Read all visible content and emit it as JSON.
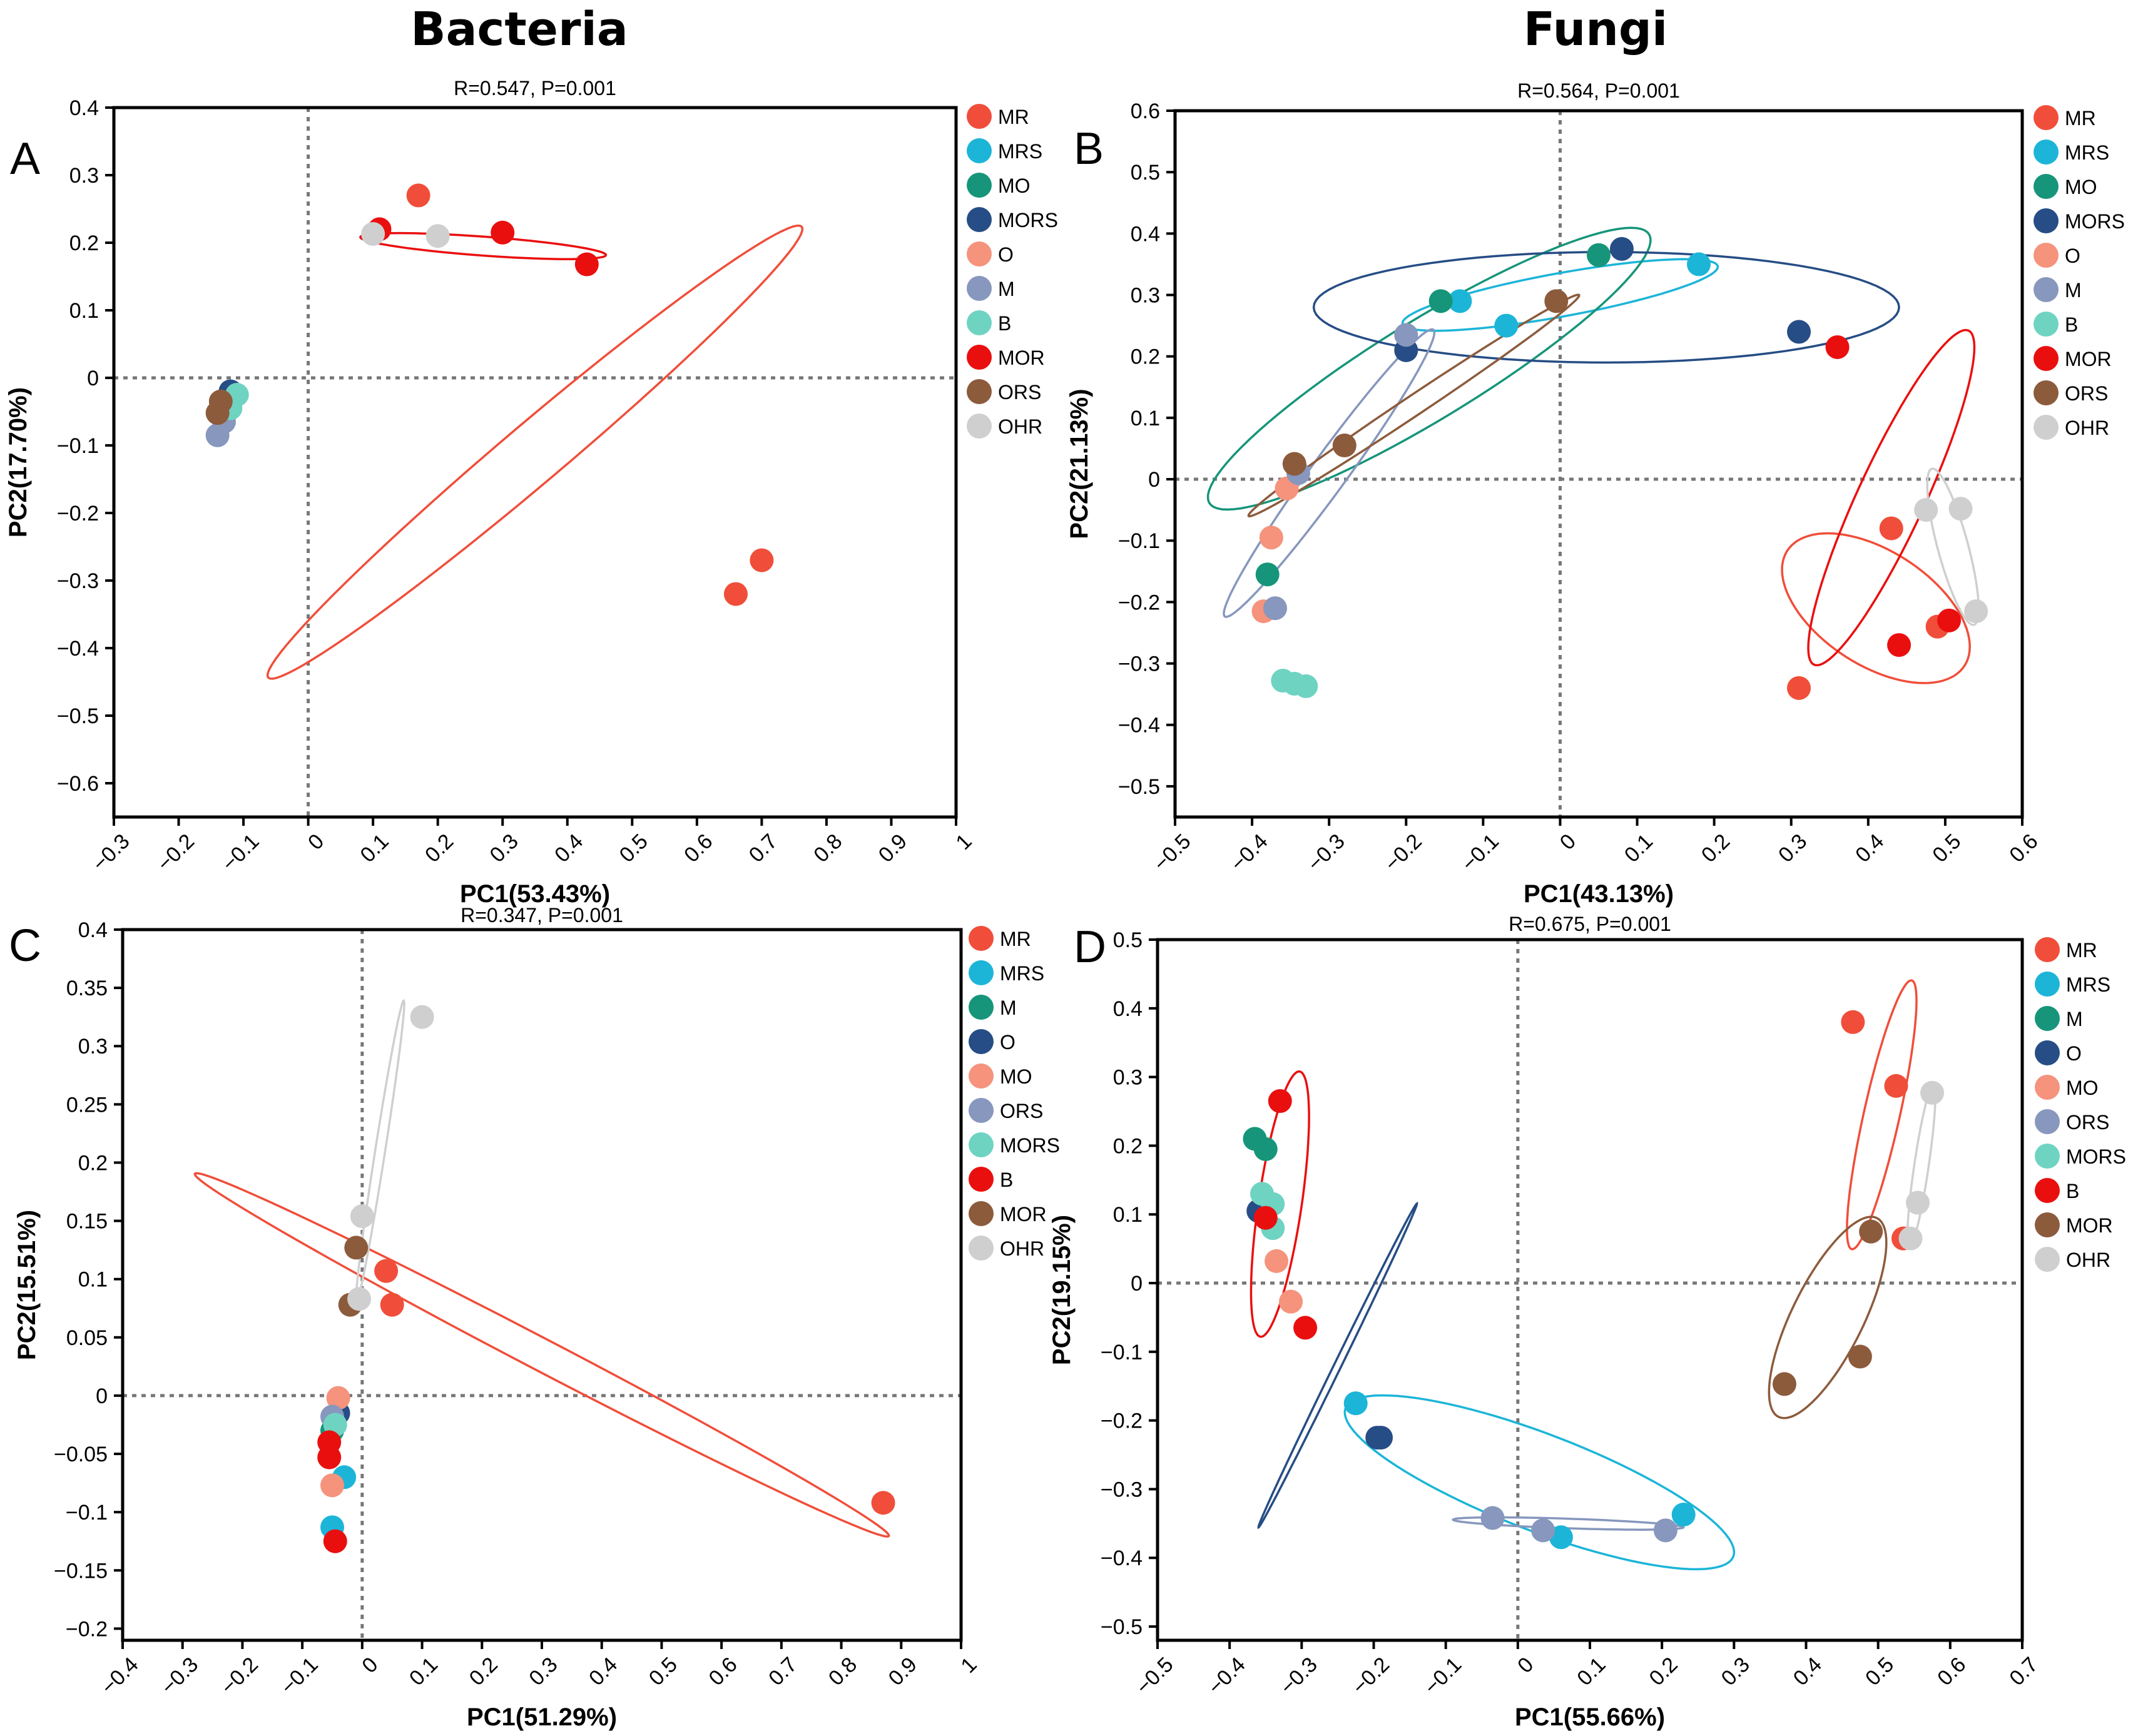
{
  "figure": {
    "column_titles": [
      "Bacteria",
      "Fungi"
    ]
  },
  "chart_data": [
    {
      "type": "scatter",
      "panel": "A",
      "title": "R=0.547, P=0.001",
      "xlabel": "PC1(53.43%)",
      "ylabel": "PC2(17.70%)",
      "xlim": [
        -0.3,
        1.0
      ],
      "ylim": [
        -0.65,
        0.4
      ],
      "xticks": [
        -0.3,
        -0.2,
        -0.1,
        0,
        0.1,
        0.2,
        0.3,
        0.4,
        0.5,
        0.6,
        0.7,
        0.8,
        0.9,
        1
      ],
      "yticks": [
        -0.6,
        -0.5,
        -0.4,
        -0.3,
        -0.2,
        -0.1,
        0,
        0.1,
        0.2,
        0.3,
        0.4
      ],
      "xtick_labels": [
        "−0.3",
        "−0.2",
        "−0.1",
        "0",
        "0.1",
        "0.2",
        "0.3",
        "0.4",
        "0.5",
        "0.6",
        "0.7",
        "0.8",
        "0.9",
        "1"
      ],
      "ytick_labels": [
        "−0.6",
        "−0.5",
        "−0.4",
        "−0.3",
        "−0.2",
        "−0.1",
        "0",
        "0.1",
        "0.2",
        "0.3",
        "0.4"
      ],
      "reference_lines": {
        "x": 0,
        "y": 0
      },
      "series": [
        {
          "name": "MR",
          "color": "#f04e3a",
          "points": [
            [
              0.17,
              0.27
            ],
            [
              0.66,
              -0.32
            ],
            [
              0.7,
              -0.27
            ]
          ],
          "ellipse": {
            "cx": 0.35,
            "cy": -0.11,
            "rx": 0.53,
            "ry": 0.045,
            "angle_deg": 39
          }
        },
        {
          "name": "MRS",
          "color": "#1cb5d8",
          "points": []
        },
        {
          "name": "MO",
          "color": "#16957a",
          "points": []
        },
        {
          "name": "MORS",
          "color": "#264d85",
          "points": [
            [
              -0.12,
              -0.02
            ]
          ]
        },
        {
          "name": "O",
          "color": "#f5937c",
          "points": []
        },
        {
          "name": "M",
          "color": "#8797bd",
          "points": [
            [
              -0.14,
              -0.085
            ],
            [
              -0.13,
              -0.065
            ]
          ]
        },
        {
          "name": "B",
          "color": "#6fd3c2",
          "points": [
            [
              -0.11,
              -0.025
            ],
            [
              -0.12,
              -0.045
            ]
          ]
        },
        {
          "name": "MOR",
          "color": "#ea0f0f",
          "points": [
            [
              0.11,
              0.22
            ],
            [
              0.3,
              0.215
            ],
            [
              0.43,
              0.168
            ]
          ],
          "ellipse": {
            "cx": 0.27,
            "cy": 0.195,
            "rx": 0.19,
            "ry": 0.014,
            "angle_deg": -4
          }
        },
        {
          "name": "ORS",
          "color": "#8c5b3c",
          "points": [
            [
              -0.135,
              -0.035
            ],
            [
              -0.14,
              -0.052
            ]
          ]
        },
        {
          "name": "OHR",
          "color": "#cfcfcf",
          "points": [
            [
              0.1,
              0.213
            ],
            [
              0.2,
              0.21
            ]
          ]
        }
      ]
    },
    {
      "type": "scatter",
      "panel": "B",
      "title": "R=0.564, P=0.001",
      "xlabel": "PC1(43.13%)",
      "ylabel": "PC2(21.13%)",
      "xlim": [
        -0.5,
        0.6
      ],
      "ylim": [
        -0.55,
        0.6
      ],
      "xticks": [
        -0.5,
        -0.4,
        -0.3,
        -0.2,
        -0.1,
        0,
        0.1,
        0.2,
        0.3,
        0.4,
        0.5,
        0.6
      ],
      "yticks": [
        -0.5,
        -0.4,
        -0.3,
        -0.2,
        -0.1,
        0,
        0.1,
        0.2,
        0.3,
        0.4,
        0.5,
        0.6
      ],
      "xtick_labels": [
        "−0.5",
        "−0.4",
        "−0.3",
        "−0.2",
        "−0.1",
        "0",
        "0.1",
        "0.2",
        "0.3",
        "0.4",
        "0.5",
        "0.6"
      ],
      "ytick_labels": [
        "−0.5",
        "−0.4",
        "−0.3",
        "−0.2",
        "−0.1",
        "0",
        "0.1",
        "0.2",
        "0.3",
        "0.4",
        "0.5",
        "0.6"
      ],
      "reference_lines": {
        "x": 0,
        "y": 0
      },
      "series": [
        {
          "name": "MR",
          "color": "#f04e3a",
          "points": [
            [
              0.43,
              -0.08
            ],
            [
              0.31,
              -0.34
            ],
            [
              0.49,
              -0.24
            ]
          ],
          "ellipse": {
            "cx": 0.41,
            "cy": -0.21,
            "rx": 0.15,
            "ry": 0.085,
            "angle_deg": -45
          }
        },
        {
          "name": "MRS",
          "color": "#1cb5d8",
          "points": [
            [
              -0.13,
              0.29
            ],
            [
              -0.07,
              0.25
            ],
            [
              0.18,
              0.35
            ]
          ],
          "ellipse": {
            "cx": 0.0,
            "cy": 0.3,
            "rx": 0.21,
            "ry": 0.035,
            "angle_deg": 13
          }
        },
        {
          "name": "MO",
          "color": "#16957a",
          "points": [
            [
              -0.38,
              -0.155
            ],
            [
              -0.155,
              0.29
            ],
            [
              0.05,
              0.365
            ]
          ],
          "ellipse": {
            "cx": -0.17,
            "cy": 0.18,
            "rx": 0.36,
            "ry": 0.075,
            "angle_deg": 38
          }
        },
        {
          "name": "MORS",
          "color": "#264d85",
          "points": [
            [
              -0.2,
              0.21
            ],
            [
              0.08,
              0.375
            ],
            [
              0.31,
              0.24
            ]
          ],
          "ellipse": {
            "cx": 0.06,
            "cy": 0.28,
            "rx": 0.38,
            "ry": 0.09,
            "angle_deg": 0
          }
        },
        {
          "name": "O",
          "color": "#f5937c",
          "points": [
            [
              -0.355,
              -0.015
            ],
            [
              -0.375,
              -0.095
            ],
            [
              -0.385,
              -0.215
            ]
          ]
        },
        {
          "name": "M",
          "color": "#8797bd",
          "points": [
            [
              -0.2,
              0.235
            ],
            [
              -0.34,
              0.01
            ],
            [
              -0.37,
              -0.21
            ]
          ],
          "ellipse": {
            "cx": -0.3,
            "cy": 0.01,
            "rx": 0.27,
            "ry": 0.025,
            "angle_deg": 60
          }
        },
        {
          "name": "B",
          "color": "#6fd3c2",
          "points": [
            [
              -0.36,
              -0.328
            ],
            [
              -0.345,
              -0.333
            ],
            [
              -0.33,
              -0.337
            ]
          ]
        },
        {
          "name": "MOR",
          "color": "#ea0f0f",
          "points": [
            [
              0.36,
              0.215
            ],
            [
              0.44,
              -0.27
            ],
            [
              0.505,
              -0.23
            ]
          ],
          "ellipse": {
            "cx": 0.43,
            "cy": -0.03,
            "rx": 0.29,
            "ry": 0.045,
            "angle_deg": 70
          }
        },
        {
          "name": "ORS",
          "color": "#8c5b3c",
          "points": [
            [
              -0.345,
              0.025
            ],
            [
              -0.28,
              0.055
            ],
            [
              -0.005,
              0.29
            ]
          ],
          "ellipse": {
            "cx": -0.19,
            "cy": 0.12,
            "rx": 0.28,
            "ry": 0.015,
            "angle_deg": 40
          }
        },
        {
          "name": "OHR",
          "color": "#cfcfcf",
          "points": [
            [
              0.475,
              -0.05
            ],
            [
              0.52,
              -0.048
            ],
            [
              0.54,
              -0.215
            ]
          ],
          "ellipse": {
            "cx": 0.51,
            "cy": -0.11,
            "rx": 0.13,
            "ry": 0.02,
            "angle_deg": -78
          }
        }
      ]
    },
    {
      "type": "scatter",
      "panel": "C",
      "title": "R=0.347, P=0.001",
      "xlabel": "PC1(51.29%)",
      "ylabel": "PC2(15.51%)",
      "xlim": [
        -0.4,
        1.0
      ],
      "ylim": [
        -0.21,
        0.4
      ],
      "xticks": [
        -0.4,
        -0.3,
        -0.2,
        -0.1,
        0,
        0.1,
        0.2,
        0.3,
        0.4,
        0.5,
        0.6,
        0.7,
        0.8,
        0.9,
        1
      ],
      "yticks": [
        -0.2,
        -0.15,
        -0.1,
        -0.05,
        0,
        0.05,
        0.1,
        0.15,
        0.2,
        0.25,
        0.3,
        0.35,
        0.4
      ],
      "xtick_labels": [
        "−0.4",
        "−0.3",
        "−0.2",
        "−0.1",
        "0",
        "0.1",
        "0.2",
        "0.3",
        "0.4",
        "0.5",
        "0.6",
        "0.7",
        "0.8",
        "0.9",
        "1"
      ],
      "ytick_labels": [
        "−0.2",
        "−0.15",
        "−0.1",
        "−0.05",
        "0",
        "0.05",
        "0.1",
        "0.15",
        "0.2",
        "0.25",
        "0.3",
        "0.35",
        "0.4"
      ],
      "reference_lines": {
        "x": 0,
        "y": 0
      },
      "series": [
        {
          "name": "MR",
          "color": "#f04e3a",
          "points": [
            [
              0.04,
              0.107
            ],
            [
              0.05,
              0.078
            ],
            [
              0.87,
              -0.092
            ]
          ],
          "ellipse": {
            "cx": 0.3,
            "cy": 0.035,
            "rx": 0.6,
            "ry": 0.015,
            "angle_deg": -15
          }
        },
        {
          "name": "MRS",
          "color": "#1cb5d8",
          "points": [
            [
              -0.03,
              -0.07
            ],
            [
              -0.05,
              -0.113
            ]
          ]
        },
        {
          "name": "M",
          "color": "#16957a",
          "points": [
            [
              -0.05,
              -0.03
            ]
          ]
        },
        {
          "name": "O",
          "color": "#264d85",
          "points": [
            [
              -0.04,
              -0.015
            ]
          ]
        },
        {
          "name": "MO",
          "color": "#f5937c",
          "points": [
            [
              -0.04,
              -0.002
            ],
            [
              -0.05,
              -0.077
            ]
          ]
        },
        {
          "name": "ORS",
          "color": "#8797bd",
          "points": [
            [
              -0.05,
              -0.018
            ]
          ]
        },
        {
          "name": "MORS",
          "color": "#6fd3c2",
          "points": [
            [
              -0.045,
              -0.025
            ]
          ]
        },
        {
          "name": "B",
          "color": "#ea0f0f",
          "points": [
            [
              -0.055,
              -0.04
            ],
            [
              -0.055,
              -0.053
            ],
            [
              -0.045,
              -0.125
            ]
          ]
        },
        {
          "name": "MOR",
          "color": "#8c5b3c",
          "points": [
            [
              -0.01,
              0.127
            ],
            [
              -0.02,
              0.078
            ]
          ]
        },
        {
          "name": "OHR",
          "color": "#cfcfcf",
          "points": [
            [
              0.0,
              0.154
            ],
            [
              -0.005,
              0.083
            ],
            [
              0.1,
              0.325
            ]
          ],
          "ellipse": {
            "cx": 0.03,
            "cy": 0.21,
            "rx": 0.135,
            "ry": 0.008,
            "angle_deg": 73
          }
        }
      ]
    },
    {
      "type": "scatter",
      "panel": "D",
      "title": "R=0.675, P=0.001",
      "xlabel": "PC1(55.66%)",
      "ylabel": "PC2(19.15%)",
      "xlim": [
        -0.5,
        0.7
      ],
      "ylim": [
        -0.52,
        0.5
      ],
      "xticks": [
        -0.5,
        -0.4,
        -0.3,
        -0.2,
        -0.1,
        0,
        0.1,
        0.2,
        0.3,
        0.4,
        0.5,
        0.6,
        0.7
      ],
      "yticks": [
        -0.5,
        -0.4,
        -0.3,
        -0.2,
        -0.1,
        0,
        0.1,
        0.2,
        0.3,
        0.4,
        0.5
      ],
      "xtick_labels": [
        "−0.5",
        "−0.4",
        "−0.3",
        "−0.2",
        "−0.1",
        "0",
        "0.1",
        "0.2",
        "0.3",
        "0.4",
        "0.5",
        "0.6",
        "0.7"
      ],
      "ytick_labels": [
        "−0.5",
        "−0.4",
        "−0.3",
        "−0.2",
        "−0.1",
        "0",
        "0.1",
        "0.2",
        "0.3",
        "0.4",
        "0.5"
      ],
      "reference_lines": {
        "x": 0,
        "y": 0
      },
      "series": [
        {
          "name": "MR",
          "color": "#f04e3a",
          "points": [
            [
              0.465,
              0.38
            ],
            [
              0.525,
              0.287
            ],
            [
              0.535,
              0.065
            ]
          ],
          "ellipse": {
            "cx": 0.505,
            "cy": 0.245,
            "rx": 0.2,
            "ry": 0.025,
            "angle_deg": 78
          }
        },
        {
          "name": "MRS",
          "color": "#1cb5d8",
          "points": [
            [
              -0.225,
              -0.175
            ],
            [
              0.23,
              -0.337
            ],
            [
              0.06,
              -0.37
            ]
          ],
          "ellipse": {
            "cx": 0.03,
            "cy": -0.29,
            "rx": 0.29,
            "ry": 0.07,
            "angle_deg": -22
          }
        },
        {
          "name": "M",
          "color": "#16957a",
          "points": [
            [
              -0.365,
              0.21
            ],
            [
              -0.35,
              0.195
            ]
          ]
        },
        {
          "name": "O",
          "color": "#264d85",
          "points": [
            [
              -0.36,
              0.105
            ],
            [
              -0.19,
              -0.225
            ],
            [
              -0.195,
              -0.225
            ]
          ],
          "ellipse": {
            "cx": -0.25,
            "cy": -0.12,
            "rx": 0.26,
            "ry": 0.005,
            "angle_deg": 65
          }
        },
        {
          "name": "MO",
          "color": "#f5937c",
          "points": [
            [
              -0.335,
              0.032
            ],
            [
              -0.315,
              -0.027
            ]
          ]
        },
        {
          "name": "ORS",
          "color": "#8797bd",
          "points": [
            [
              -0.035,
              -0.342
            ],
            [
              0.035,
              -0.36
            ],
            [
              0.205,
              -0.36
            ]
          ],
          "ellipse": {
            "cx": 0.07,
            "cy": -0.35,
            "rx": 0.16,
            "ry": 0.007,
            "angle_deg": -2
          }
        },
        {
          "name": "MORS",
          "color": "#6fd3c2",
          "points": [
            [
              -0.355,
              0.13
            ],
            [
              -0.34,
              0.115
            ],
            [
              -0.34,
              0.08
            ]
          ]
        },
        {
          "name": "B",
          "color": "#ea0f0f",
          "points": [
            [
              -0.33,
              0.265
            ],
            [
              -0.295,
              -0.065
            ],
            [
              -0.35,
              0.095
            ]
          ],
          "ellipse": {
            "cx": -0.33,
            "cy": 0.115,
            "rx": 0.195,
            "ry": 0.03,
            "angle_deg": 82
          }
        },
        {
          "name": "MOR",
          "color": "#8c5b3c",
          "points": [
            [
              0.49,
              0.075
            ],
            [
              0.475,
              -0.107
            ],
            [
              0.37,
              -0.147
            ]
          ],
          "ellipse": {
            "cx": 0.43,
            "cy": -0.05,
            "rx": 0.16,
            "ry": 0.05,
            "angle_deg": 65
          }
        },
        {
          "name": "OHR",
          "color": "#cfcfcf",
          "points": [
            [
              0.575,
              0.277
            ],
            [
              0.555,
              0.117
            ],
            [
              0.545,
              0.065
            ]
          ],
          "ellipse": {
            "cx": 0.56,
            "cy": 0.17,
            "rx": 0.12,
            "ry": 0.01,
            "angle_deg": 82
          }
        }
      ]
    }
  ]
}
